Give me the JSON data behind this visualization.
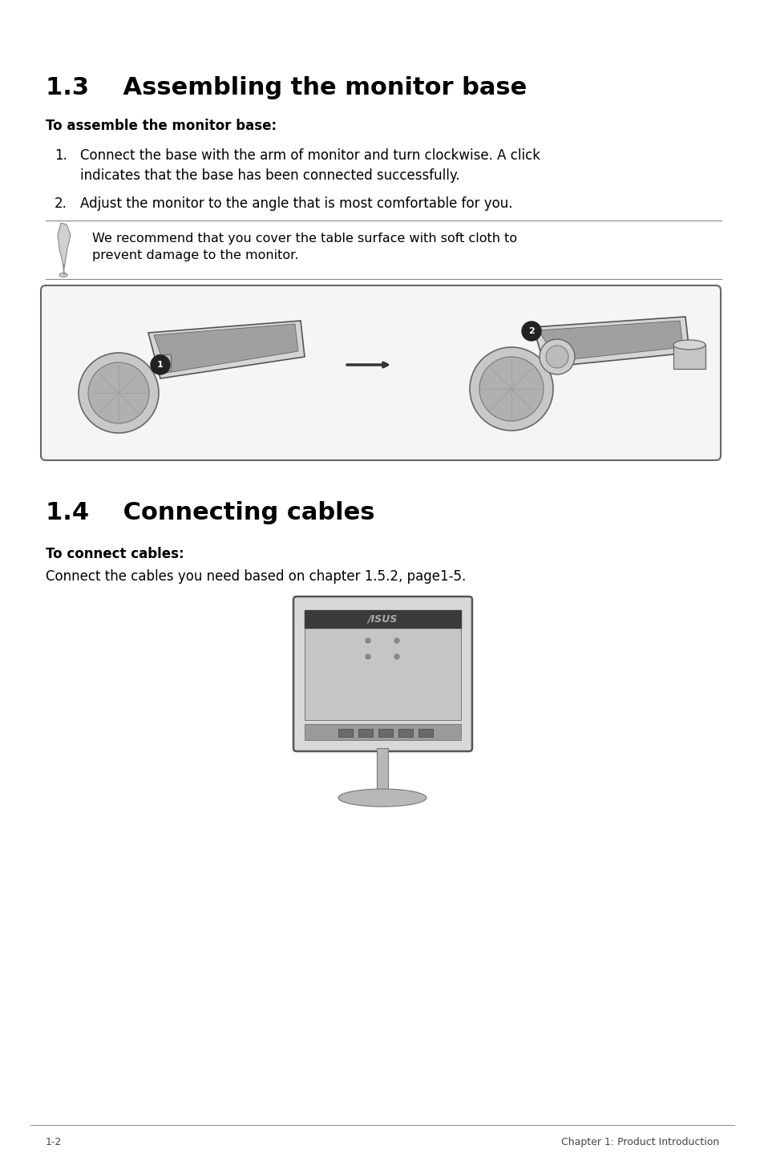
{
  "bg_color": "#ffffff",
  "title_13": "1.3    Assembling the monitor base",
  "title_14": "1.4    Connecting cables",
  "subtitle_13": "To assemble the monitor base:",
  "subtitle_14": "To connect cables:",
  "step1_num": "1.",
  "step1_text": "Connect the base with the arm of monitor and turn clockwise. A click\nindicates that the base has been connected successfully.",
  "step2_num": "2.",
  "step2_text": "Adjust the monitor to the angle that is most comfortable for you.",
  "note_text": "We recommend that you cover the table surface with soft cloth to\nprevent damage to the monitor.",
  "connect_text": "Connect the cables you need based on chapter 1.5.2, page1-5.",
  "footer_left": "1-2",
  "footer_right": "Chapter 1: Product Introduction",
  "text_color": "#000000",
  "bg_color_box": "#f5f5f5"
}
